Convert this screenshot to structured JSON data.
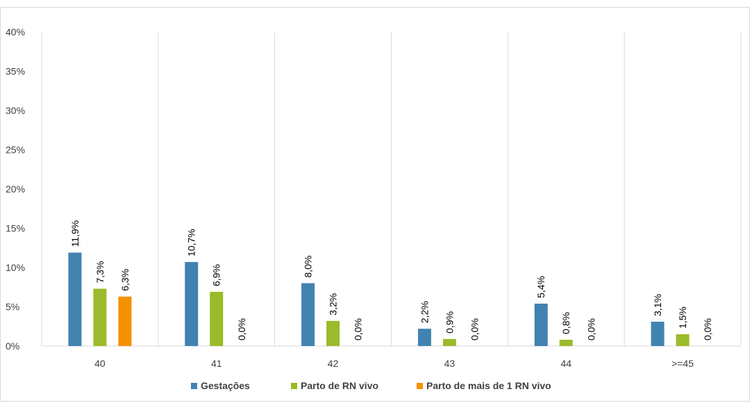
{
  "chart_data": {
    "type": "bar",
    "categories": [
      "40",
      "41",
      "42",
      "43",
      "44",
      ">=45"
    ],
    "series": [
      {
        "name": "Gestações",
        "values": [
          11.9,
          10.7,
          8.0,
          2.2,
          5.4,
          3.1
        ],
        "labels": [
          "11,9%",
          "10,7%",
          "8,0%",
          "2,2%",
          "5,4%",
          "3,1%"
        ],
        "color": "#4183b0"
      },
      {
        "name": "Parto de RN vivo",
        "values": [
          7.3,
          6.9,
          3.2,
          0.9,
          0.8,
          1.5
        ],
        "labels": [
          "7,3%",
          "6,9%",
          "3,2%",
          "0,9%",
          "0,8%",
          "1,5%"
        ],
        "color": "#9bbb2a"
      },
      {
        "name": "Parto de mais de 1 RN vivo",
        "values": [
          6.3,
          0.0,
          0.0,
          0.0,
          0.0,
          0.0
        ],
        "labels": [
          "6,3%",
          "0,0%",
          "0,0%",
          "0,0%",
          "0,0%",
          "0,0%"
        ],
        "color": "#f59100"
      }
    ],
    "y_ticks": [
      "0%",
      "5%",
      "10%",
      "15%",
      "20%",
      "25%",
      "30%",
      "35%",
      "40%"
    ],
    "ylim": [
      0,
      40
    ],
    "grid": "vertical-category-separators",
    "legend_position": "bottom"
  }
}
